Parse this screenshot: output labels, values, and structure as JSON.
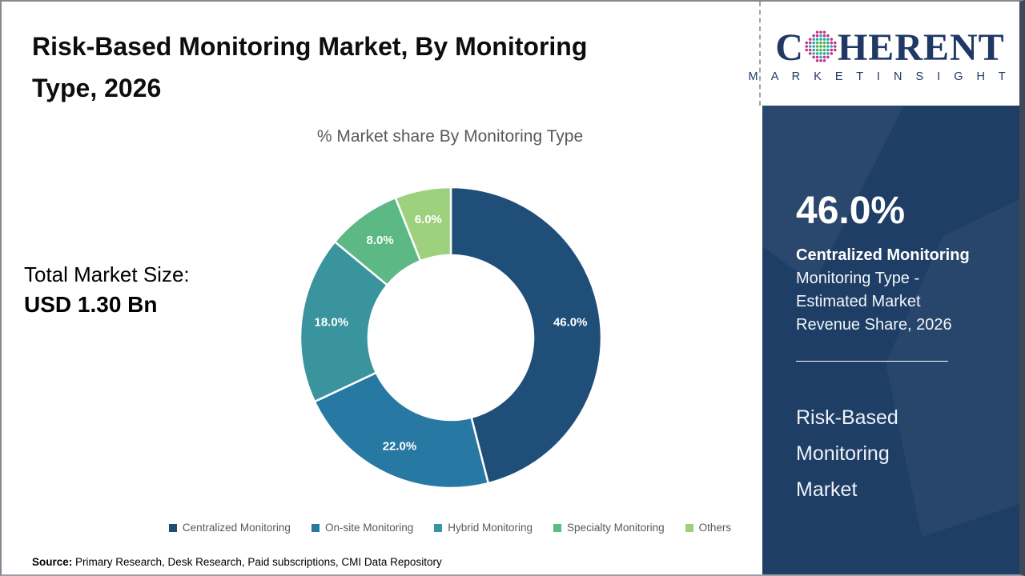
{
  "header": {
    "title_lines": [
      "Risk-Based Monitoring Market, By Monitoring",
      "Type, 2026"
    ]
  },
  "total_market": {
    "label": "Total Market Size:",
    "value": "USD 1.30 Bn"
  },
  "chart_data": {
    "type": "pie",
    "donut": true,
    "title": "% Market share By Monitoring Type",
    "categories": [
      "Centralized Monitoring",
      "On-site Monitoring",
      "Hybrid Monitoring",
      "Specialty Monitoring",
      "Others"
    ],
    "values": [
      46.0,
      22.0,
      18.0,
      8.0,
      6.0
    ],
    "labels": [
      "46.0%",
      "22.0%",
      "18.0%",
      "8.0%",
      "6.0%"
    ],
    "colors": [
      "#1F4E79",
      "#2878A4",
      "#3A949E",
      "#5CB985",
      "#9DD17E"
    ],
    "start_angle_deg": 0,
    "direction": "clockwise",
    "inner_radius_ratio": 0.548,
    "label_radius_ratio": 0.8,
    "slice_label_color": "#FFFFFF",
    "legend_position": "bottom",
    "legend_text_color": "#595959"
  },
  "logo": {
    "brand_prefix": "C",
    "brand_suffix": "HERENT",
    "tagline": "M A R K E T   I N S I G H T S",
    "globe_colors": {
      "outer": "#C0308C",
      "mid": "#2AA8A2",
      "inner": "#4FB04B"
    }
  },
  "sidebar": {
    "background": "#1F3E66",
    "highlight_value": "46.0%",
    "highlight_title": "Centralized Monitoring",
    "highlight_desc_lines": [
      "Monitoring Type -",
      "Estimated Market",
      "Revenue Share, 2026"
    ],
    "market_name_lines": [
      "Risk-Based",
      "Monitoring",
      "Market"
    ]
  },
  "source": {
    "label": "Source:",
    "text": "Primary Research, Desk Research, Paid subscriptions, CMI Data Repository"
  }
}
